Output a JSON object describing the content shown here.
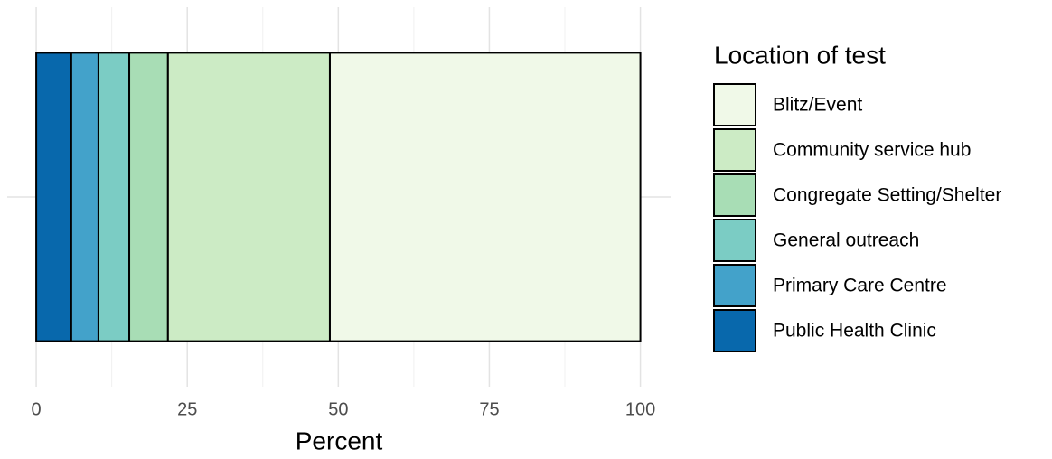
{
  "chart_data": {
    "type": "stacked_bar_horizontal",
    "categories": [
      null
    ],
    "series": [
      {
        "name": "Blitz/Event",
        "color": "#f0f9e8",
        "values": [
          51.4
        ]
      },
      {
        "name": "Community service hub",
        "color": "#ccebc5",
        "values": [
          26.8
        ]
      },
      {
        "name": "Congregate Setting/Shelter",
        "color": "#a8ddb5",
        "values": [
          6.4
        ]
      },
      {
        "name": "General outreach",
        "color": "#7bccc4",
        "values": [
          5.1
        ]
      },
      {
        "name": "Primary Care Centre",
        "color": "#43a2ca",
        "values": [
          4.5
        ]
      },
      {
        "name": "Public Health Clinic",
        "color": "#0868ac",
        "values": [
          5.8
        ]
      }
    ],
    "xlabel": "Percent",
    "legend_title": "Location of test",
    "xlim": [
      -4.8,
      105
    ],
    "xticks": [
      0,
      25,
      50,
      75,
      100
    ],
    "minor_xticks": [
      12.5,
      37.5,
      62.5,
      87.5
    ],
    "grid": true,
    "legend": "right"
  }
}
